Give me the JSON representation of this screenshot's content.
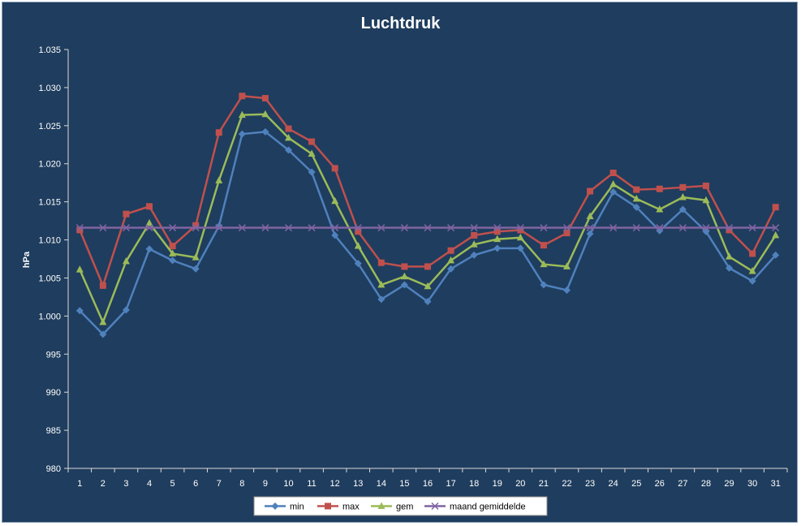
{
  "chart_data": {
    "type": "line",
    "title": "Luchtdruk",
    "xlabel": "",
    "ylabel": "hPa",
    "x": [
      1,
      2,
      3,
      4,
      5,
      6,
      7,
      8,
      9,
      10,
      11,
      12,
      13,
      14,
      15,
      16,
      17,
      18,
      19,
      20,
      21,
      22,
      23,
      24,
      25,
      26,
      27,
      28,
      29,
      30,
      31
    ],
    "ylim": [
      980,
      1035
    ],
    "yticks": [
      980,
      985,
      990,
      995,
      1000,
      1005,
      1010,
      1015,
      1020,
      1025,
      1030,
      1035
    ],
    "ytick_labels": [
      "980",
      "985",
      "990",
      "995",
      "1.000",
      "1.005",
      "1.010",
      "1.015",
      "1.020",
      "1.025",
      "1.030",
      "1.035"
    ],
    "grid": false,
    "legend": "bottom",
    "series": [
      {
        "name": "min",
        "color": "#4f81bd",
        "marker": "diamond",
        "values": [
          1000.7,
          997.6,
          1000.8,
          1008.8,
          1007.3,
          1006.2,
          1011.8,
          1023.9,
          1024.2,
          1021.8,
          1018.9,
          1010.6,
          1006.9,
          1002.2,
          1004.1,
          1001.9,
          1006.2,
          1008.0,
          1008.9,
          1008.9,
          1004.1,
          1003.4,
          1010.8,
          1016.3,
          1014.3,
          1011.2,
          1014.0,
          1011.1,
          1006.3,
          1004.6,
          1008.0
        ]
      },
      {
        "name": "max",
        "color": "#c0504d",
        "marker": "square",
        "values": [
          1011.3,
          1004.0,
          1013.4,
          1014.4,
          1009.2,
          1011.9,
          1024.1,
          1028.9,
          1028.6,
          1024.6,
          1022.9,
          1019.4,
          1011.1,
          1007.0,
          1006.5,
          1006.5,
          1008.6,
          1010.6,
          1011.1,
          1011.3,
          1009.3,
          1010.9,
          1016.4,
          1018.8,
          1016.6,
          1016.7,
          1016.9,
          1017.1,
          1011.3,
          1008.2,
          1014.3
        ]
      },
      {
        "name": "gem",
        "color": "#9bbb59",
        "marker": "triangle",
        "values": [
          1006.1,
          999.2,
          1007.2,
          1012.2,
          1008.2,
          1007.7,
          1017.8,
          1026.4,
          1026.5,
          1023.4,
          1021.3,
          1015.1,
          1009.2,
          1004.1,
          1005.2,
          1003.9,
          1007.3,
          1009.4,
          1010.1,
          1010.3,
          1006.8,
          1006.5,
          1013.1,
          1017.3,
          1015.4,
          1014.0,
          1015.6,
          1015.2,
          1007.8,
          1005.9,
          1010.6
        ]
      },
      {
        "name": "maand gemiddelde",
        "color": "#8064a2",
        "marker": "x",
        "values": [
          1011.6,
          1011.6,
          1011.6,
          1011.6,
          1011.6,
          1011.6,
          1011.6,
          1011.6,
          1011.6,
          1011.6,
          1011.6,
          1011.6,
          1011.6,
          1011.6,
          1011.6,
          1011.6,
          1011.6,
          1011.6,
          1011.6,
          1011.6,
          1011.6,
          1011.6,
          1011.6,
          1011.6,
          1011.6,
          1011.6,
          1011.6,
          1011.6,
          1011.6,
          1011.6,
          1011.6
        ]
      }
    ]
  }
}
